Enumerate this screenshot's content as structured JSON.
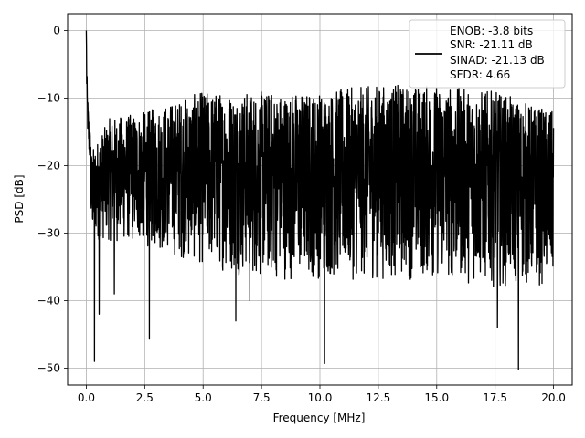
{
  "chart_data": {
    "type": "line",
    "title": "",
    "xlabel": "Frequency [MHz]",
    "ylabel": "PSD [dB]",
    "xlim": [
      -0.8,
      20.8
    ],
    "ylim": [
      -52.5,
      2.5
    ],
    "xticks": [
      0.0,
      2.5,
      5.0,
      7.5,
      10.0,
      12.5,
      15.0,
      17.5,
      20.0
    ],
    "xtick_labels": [
      "0.0",
      "2.5",
      "5.0",
      "7.5",
      "10.0",
      "12.5",
      "15.0",
      "17.5",
      "20.0"
    ],
    "yticks": [
      0,
      -10,
      -20,
      -30,
      -40,
      -50
    ],
    "ytick_labels": [
      "0",
      "−10",
      "−20",
      "−30",
      "−40",
      "−50"
    ],
    "grid": true,
    "legend_placement": "top-right",
    "legend_lines": [
      "ENOB: -3.8 bits",
      "SNR: -21.11 dB",
      "SINAD: -21.13 dB",
      "SFDR: 4.66"
    ],
    "series": [
      {
        "color": "#000000",
        "description": "dense noise-like PSD trace from 0 to 20 MHz; peak 0 dB at DC, mean about -20 dB, envelope roughly -8 to -35 dB with dips to about -50 dB",
        "x_range": [
          0.0,
          20.0
        ],
        "peak": {
          "x": 0.0,
          "y": 0.0
        },
        "dc_decay": [
          [
            0.0,
            0.0
          ],
          [
            0.02,
            -8
          ],
          [
            0.05,
            -12
          ],
          [
            0.1,
            -15
          ],
          [
            0.2,
            -19
          ]
        ],
        "upper_envelope": [
          [
            0.2,
            -18
          ],
          [
            1.0,
            -13
          ],
          [
            2.5,
            -12
          ],
          [
            5.0,
            -9
          ],
          [
            7.5,
            -9
          ],
          [
            10.0,
            -9
          ],
          [
            12.5,
            -8
          ],
          [
            15.0,
            -8
          ],
          [
            17.5,
            -9
          ],
          [
            20.0,
            -12
          ]
        ],
        "lower_envelope": [
          [
            0.2,
            -31
          ],
          [
            2.5,
            -32
          ],
          [
            5.0,
            -35
          ],
          [
            7.5,
            -37
          ],
          [
            10.0,
            -37
          ],
          [
            12.5,
            -37
          ],
          [
            15.0,
            -37
          ],
          [
            17.5,
            -38
          ],
          [
            20.0,
            -38
          ]
        ],
        "notable_dips": [
          [
            0.35,
            -49
          ],
          [
            0.55,
            -42
          ],
          [
            1.2,
            -39
          ],
          [
            2.7,
            -45.7
          ],
          [
            6.4,
            -43
          ],
          [
            7.0,
            -40
          ],
          [
            10.2,
            -49.3
          ],
          [
            17.6,
            -44
          ],
          [
            18.5,
            -50.2
          ]
        ]
      }
    ]
  }
}
